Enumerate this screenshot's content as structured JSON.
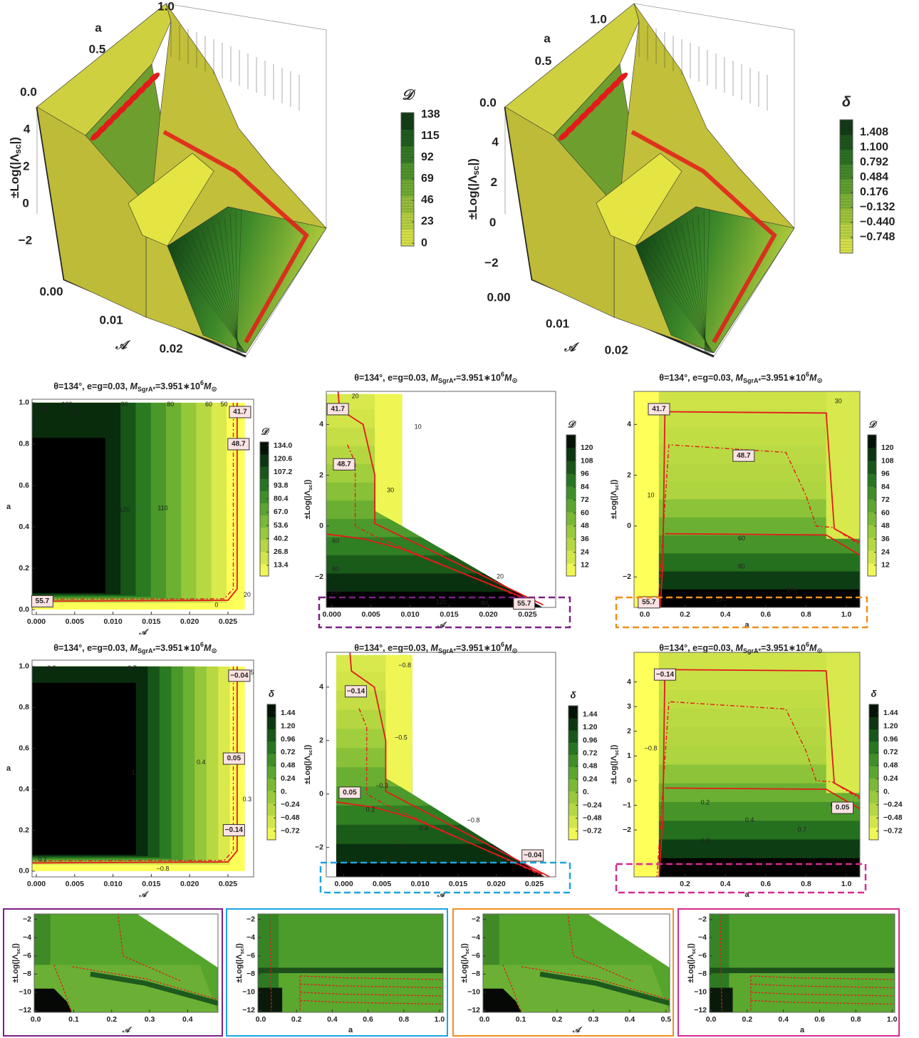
{
  "chart_data": [
    {
      "type": "surface3d",
      "xlabel": "𝒜",
      "ylabel": "a",
      "zlabel": [
        "±Log(|Λ",
        "sc",
        "|)"
      ],
      "xlim": [
        0,
        0.027
      ],
      "xticks": [
        {
          "value": 0,
          "label": "0.00"
        },
        0.01,
        0.02
      ],
      "ylim": [
        0,
        1
      ],
      "yticks": [
        {
          "value": 0,
          "label": "0.0"
        },
        0.5,
        {
          "value": 1,
          "label": "1.0"
        }
      ],
      "zlim": [
        -3,
        5
      ],
      "zticks": [
        {
          "value": -2,
          "label": "−2"
        },
        0,
        2,
        4
      ],
      "colorbar": {
        "label": "𝒟",
        "lim": [
          -3,
          140
        ],
        "ticks": [
          0,
          23,
          46,
          69,
          92,
          115,
          138
        ],
        "colors": [
          "#e6e84a",
          "#a6c83c",
          "#5da02e",
          "#256a20",
          "#0c2c12"
        ]
      }
    },
    {
      "type": "surface3d",
      "xlabel": "𝒜",
      "ylabel": "a",
      "zlabel": [
        "±Log(|Λ",
        "sc",
        "|)"
      ],
      "xlim": [
        0,
        0.027
      ],
      "xticks": [
        {
          "value": 0,
          "label": "0.00"
        },
        0.01,
        0.02
      ],
      "ylim": [
        0,
        1
      ],
      "yticks": [
        {
          "value": 0,
          "label": "0.0"
        },
        0.5,
        {
          "value": 1,
          "label": "1.0"
        }
      ],
      "zlim": [
        -3,
        5
      ],
      "zticks": [
        {
          "value": -2,
          "label": "−2"
        },
        0,
        2,
        4
      ],
      "colorbar": {
        "label": "δ",
        "lim": [
          -1.07,
          1.67
        ],
        "ticks": [
          {
            "value": -0.748,
            "label": "−0.748"
          },
          {
            "value": -0.44,
            "label": "−0.440"
          },
          {
            "value": -0.132,
            "label": "−0.132"
          },
          0.176,
          0.484,
          0.792,
          {
            "value": 1.1,
            "label": "1.100"
          },
          1.408
        ],
        "colors": [
          "#e6e84a",
          "#a6c83c",
          "#5da02e",
          "#256a20",
          "#0c2c12"
        ]
      }
    },
    {
      "type": "contour",
      "title": [
        "θ=134°, e=g=0.03, ",
        "M",
        "SgrA*",
        "=3.951∗10",
        "6",
        "M",
        "⊙"
      ],
      "xlabel": "𝒜",
      "ylabel": "a",
      "xlim": [
        -0.00056,
        0.02835
      ],
      "xticks": [
        {
          "value": 0,
          "label": "0.000"
        },
        0.005,
        {
          "value": 0.01,
          "label": "0.010"
        },
        0.015,
        {
          "value": 0.02,
          "label": "0.020"
        },
        0.025
      ],
      "ylim": [
        -0.024,
        1.017
      ],
      "yticks": [
        {
          "value": 0,
          "label": "0.0"
        },
        0.2,
        0.4,
        0.6,
        0.8,
        {
          "value": 1,
          "label": "1.0"
        }
      ],
      "colorbar": {
        "label": "𝒟",
        "lim": [
          2.6,
          137.6
        ],
        "ticks": [
          13.4,
          26.8,
          40.2,
          53.6,
          {
            "value": 67,
            "label": "67.0"
          },
          80.4,
          93.8,
          107.2,
          120.6,
          {
            "value": 134,
            "label": "134.0"
          }
        ],
        "colors": [
          "#ffff5a",
          "#c8e046",
          "#94c83a",
          "#5aa62e",
          "#2a7a22",
          "#0e4214",
          "#000000"
        ]
      },
      "boxed_labels": [
        41.7,
        48.7,
        55.7
      ],
      "contour_labels": [
        110,
        100,
        120,
        90,
        80,
        60,
        50,
        120,
        110,
        20,
        0
      ]
    },
    {
      "type": "contour",
      "title": [
        "θ=134°, e=g=0.03, ",
        "M",
        "SgrA*",
        "=3.951∗10",
        "6",
        "M",
        "⊙"
      ],
      "xlabel": "𝒜",
      "ylabel": [
        "±Log(|Λ",
        "sc",
        "|)"
      ],
      "xlim": [
        -0.0007,
        0.0286
      ],
      "xticks": [
        {
          "value": 0,
          "label": "0.000"
        },
        0.005,
        {
          "value": 0.01,
          "label": "0.010"
        },
        0.015,
        {
          "value": 0.02,
          "label": "0.020"
        },
        0.025
      ],
      "ylim": [
        -3.2,
        5.3
      ],
      "yticks": [
        {
          "value": -2,
          "label": "−2"
        },
        0,
        2,
        4
      ],
      "colorbar": {
        "label": "𝒟",
        "lim": [
          2,
          132
        ],
        "ticks": [
          12,
          24,
          36,
          48,
          60,
          72,
          84,
          96,
          108,
          120
        ],
        "colors": [
          "#ffff5a",
          "#c8e046",
          "#94c83a",
          "#5aa62e",
          "#2a7a22",
          "#0e4214",
          "#000000"
        ]
      },
      "boxed_labels": [
        41.7,
        48.7,
        55.7
      ],
      "contour_labels": [
        20,
        10,
        30,
        60,
        80,
        100,
        20,
        120,
        80
      ]
    },
    {
      "type": "contour",
      "title": [
        "θ=134°, e=g=0.03, ",
        "M",
        "SgrA*",
        "=3.951∗10",
        "6",
        "M",
        "⊙"
      ],
      "xlabel": "a",
      "ylabel": [
        "±Log(|Λ",
        "sc",
        "|)"
      ],
      "xlim": [
        -0.053,
        1.067
      ],
      "xticks": [
        {
          "value": 0,
          "label": "0.0"
        },
        0.2,
        0.4,
        0.6,
        0.8,
        {
          "value": 1,
          "label": "1.0"
        }
      ],
      "ylim": [
        -3.2,
        5.3
      ],
      "yticks": [
        {
          "value": -2,
          "label": "−2"
        },
        0,
        2,
        4
      ],
      "colorbar": {
        "label": "𝒟",
        "lim": [
          2,
          132
        ],
        "ticks": [
          12,
          24,
          36,
          48,
          60,
          72,
          84,
          96,
          108,
          120
        ],
        "colors": [
          "#ffff5a",
          "#c8e046",
          "#94c83a",
          "#5aa62e",
          "#2a7a22",
          "#0e4214",
          "#000000"
        ]
      },
      "boxed_labels": [
        41.7,
        48.7,
        55.7
      ],
      "contour_labels": [
        30,
        10,
        60,
        80,
        100,
        120
      ]
    },
    {
      "type": "contour",
      "title": [
        "θ=134°, e=g=0.03, ",
        "M",
        "SgrA*",
        "=3.951∗10",
        "6",
        "M",
        "⊙"
      ],
      "xlabel": "𝒜",
      "ylabel": "a",
      "xlim": [
        -0.00056,
        0.02835
      ],
      "xticks": [
        {
          "value": 0,
          "label": "0.000"
        },
        0.005,
        {
          "value": 0.01,
          "label": "0.010"
        },
        0.015,
        {
          "value": 0.02,
          "label": "0.020"
        },
        0.025
      ],
      "ylim": [
        -0.028,
        1.031
      ],
      "yticks": [
        {
          "value": 0,
          "label": "0.0"
        },
        0.2,
        0.4,
        0.6,
        0.8,
        {
          "value": 1,
          "label": "1.0"
        }
      ],
      "colorbar": {
        "label": "δ",
        "lim": [
          -0.88,
          1.6
        ],
        "ticks": [
          {
            "value": -0.72,
            "label": "−0.72"
          },
          {
            "value": -0.48,
            "label": "−0.48"
          },
          {
            "value": -0.24,
            "label": "−0.24"
          },
          {
            "value": 0,
            "label": "0."
          },
          0.24,
          0.48,
          0.72,
          0.96,
          {
            "value": 1.2,
            "label": "1.20"
          },
          1.44
        ],
        "colors": [
          "#ffff5a",
          "#c8e046",
          "#94c83a",
          "#5aa62e",
          "#2a7a22",
          "#0e4214",
          "#000000"
        ]
      },
      "boxed_labels": [
        {
          "value": -0.04,
          "label": "−0.04"
        },
        0.05,
        {
          "value": -0.14,
          "label": "−0.14"
        }
      ],
      "contour_labels": [
        0.9,
        1.2,
        0.7,
        1.2,
        0.4,
        0.5,
        0.3,
        0.2,
        {
          "value": -0.8,
          "label": "−0.8"
        }
      ]
    },
    {
      "type": "contour",
      "title": [
        "θ=134°, e=g=0.03, ",
        "M",
        "SgrA*",
        "=3.951∗10",
        "6",
        "M",
        "⊙"
      ],
      "xlabel": "𝒜",
      "ylabel": [
        "±Log(|Λ",
        "sc",
        "|)"
      ],
      "xlim": [
        -0.0023,
        0.0278
      ],
      "xticks": [
        {
          "value": 0,
          "label": "0.000"
        },
        0.005,
        {
          "value": 0.01,
          "label": "0.010"
        },
        0.015,
        {
          "value": 0.02,
          "label": "0.020"
        },
        0.025
      ],
      "ylim": [
        -3.1,
        5.3
      ],
      "yticks": [
        {
          "value": -2,
          "label": "−2"
        },
        0,
        2,
        4
      ],
      "colorbar": {
        "label": "δ",
        "lim": [
          -0.88,
          1.6
        ],
        "ticks": [
          {
            "value": -0.72,
            "label": "−0.72"
          },
          {
            "value": -0.48,
            "label": "−0.48"
          },
          {
            "value": -0.24,
            "label": "−0.24"
          },
          {
            "value": 0,
            "label": "0."
          },
          0.24,
          0.48,
          0.72,
          0.96,
          {
            "value": 1.2,
            "label": "1.20"
          },
          1.44
        ],
        "colors": [
          "#ffff5a",
          "#c8e046",
          "#94c83a",
          "#5aa62e",
          "#2a7a22",
          "#0e4214",
          "#000000"
        ]
      },
      "boxed_labels": [
        {
          "value": -0.14,
          "label": "−0.14"
        },
        0.05,
        {
          "value": -0.04,
          "label": "−0.04"
        }
      ],
      "contour_labels": [
        {
          "value": -0.8,
          "label": "−0.8"
        },
        {
          "value": -0.5,
          "label": "−0.5"
        },
        {
          "value": -0.3,
          "label": "−0.3"
        },
        0.2,
        0.4,
        0.9,
        {
          "value": -0.8,
          "label": "−0.8"
        },
        0.7
      ]
    },
    {
      "type": "contour",
      "title": [
        "θ=134°, e=g=0.03, ",
        "M",
        "SgrA*",
        "=3.951∗10",
        "6",
        "M",
        "⊙"
      ],
      "xlabel": "a",
      "ylabel": [
        "±Log(|Λ",
        "sc",
        "|)"
      ],
      "xlim": [
        -0.053,
        1.067
      ],
      "xticks": [
        {
          "value": 0.2,
          "label": "0.2"
        },
        0.4,
        0.6,
        0.8,
        {
          "value": 1,
          "label": "1.0"
        }
      ],
      "ylim": [
        -3.9,
        5.2
      ],
      "yticks": [
        {
          "value": -2,
          "label": "−2"
        },
        {
          "value": -1,
          "label": "−1"
        },
        0,
        1,
        2,
        3,
        4
      ],
      "colorbar": {
        "label": "δ",
        "lim": [
          -0.88,
          1.6
        ],
        "ticks": [
          {
            "value": -0.72,
            "label": "−0.72"
          },
          {
            "value": -0.48,
            "label": "−0.48"
          },
          {
            "value": -0.24,
            "label": "−0.24"
          },
          {
            "value": 0,
            "label": "0."
          },
          0.24,
          0.48,
          0.72,
          0.96,
          {
            "value": 1.2,
            "label": "1.20"
          },
          1.44
        ],
        "colors": [
          "#ffff5a",
          "#c8e046",
          "#94c83a",
          "#5aa62e",
          "#2a7a22",
          "#0e4214",
          "#000000"
        ]
      },
      "boxed_labels": [
        {
          "value": -0.14,
          "label": "−0.14"
        },
        0.05
      ],
      "contour_labels": [
        {
          "value": -0.8,
          "label": "−0.8"
        },
        0.2,
        0.4,
        0.7,
        0.9,
        0
      ]
    },
    {
      "type": "contour",
      "xlabel": "𝒜",
      "ylabel": [
        "±Log(|Λ",
        "sc",
        "|)"
      ],
      "frame_color": "#7e1f86",
      "xlim": [
        -0.004,
        0.48
      ],
      "xticks": [
        {
          "value": 0,
          "label": "0.0"
        },
        0.1,
        0.2,
        0.3,
        0.4
      ],
      "ylim": [
        -12.2,
        -1.4
      ],
      "yticks": [
        {
          "value": -2,
          "label": "−2"
        },
        {
          "value": -4,
          "label": "−4"
        },
        {
          "value": -6,
          "label": "−6"
        },
        {
          "value": -8,
          "label": "−8"
        },
        {
          "value": -10,
          "label": "−10"
        },
        {
          "value": -12,
          "label": "−12"
        }
      ]
    },
    {
      "type": "contour",
      "xlabel": "a",
      "ylabel": [
        "±Log(|Λ",
        "sc",
        "|)"
      ],
      "frame_color": "#1fa3e0",
      "xlim": [
        -0.016,
        1.02
      ],
      "xticks": [
        {
          "value": 0,
          "label": "0.0"
        },
        0.2,
        0.4,
        0.6,
        0.8,
        {
          "value": 1,
          "label": "1.0"
        }
      ],
      "ylim": [
        -12.2,
        -1.4
      ],
      "yticks": [
        {
          "value": -2,
          "label": "−2"
        },
        {
          "value": -4,
          "label": "−4"
        },
        {
          "value": -6,
          "label": "−6"
        },
        {
          "value": -8,
          "label": "−8"
        },
        {
          "value": -10,
          "label": "−10"
        },
        {
          "value": -12,
          "label": "−12"
        }
      ]
    },
    {
      "type": "contour",
      "xlabel": "𝒜",
      "ylabel": [
        "±Log(|Λ",
        "sc",
        "|)"
      ],
      "frame_color": "#f0901e",
      "xlim": [
        -0.004,
        0.51
      ],
      "xticks": [
        {
          "value": 0,
          "label": "0.0"
        },
        0.1,
        0.2,
        0.3,
        0.4,
        0.5
      ],
      "ylim": [
        -12.2,
        -1.4
      ],
      "yticks": [
        {
          "value": -2,
          "label": "−2"
        },
        {
          "value": -4,
          "label": "−4"
        },
        {
          "value": -6,
          "label": "−6"
        },
        {
          "value": -8,
          "label": "−8"
        },
        {
          "value": -10,
          "label": "−10"
        },
        {
          "value": -12,
          "label": "−12"
        }
      ]
    },
    {
      "type": "contour",
      "xlabel": "a",
      "ylabel": [
        "±Log(|Λ",
        "sc",
        "|)"
      ],
      "frame_color": "#d72a8f",
      "xlim": [
        -0.008,
        1.015
      ],
      "xticks": [
        {
          "value": 0,
          "label": "0.0"
        },
        0.2,
        0.4,
        0.6,
        0.8,
        {
          "value": 1,
          "label": "1.0"
        }
      ],
      "ylim": [
        -12.2,
        -1.4
      ],
      "yticks": [
        {
          "value": -2,
          "label": "−2"
        },
        {
          "value": -4,
          "label": "−4"
        },
        {
          "value": -6,
          "label": "−6"
        },
        {
          "value": -8,
          "label": "−8"
        },
        {
          "value": -10,
          "label": "−10"
        },
        {
          "value": -12,
          "label": "−12"
        }
      ]
    }
  ]
}
